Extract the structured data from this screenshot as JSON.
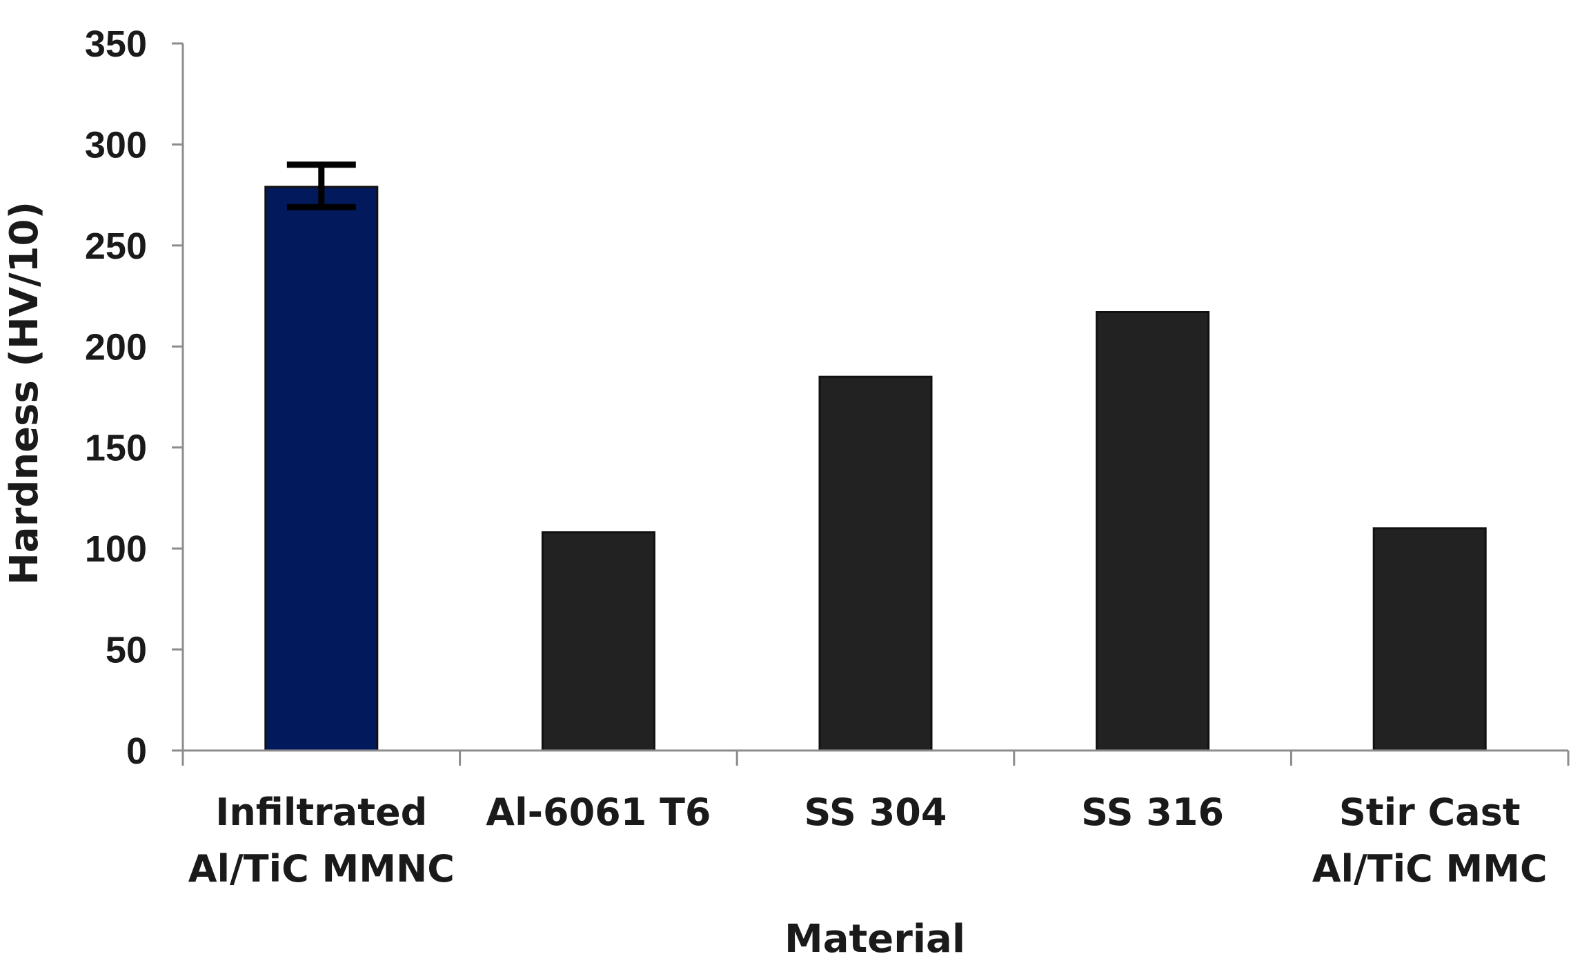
{
  "chart_data": {
    "type": "bar",
    "categories": [
      [
        "Infiltrated",
        "Al/TiC MMNC"
      ],
      [
        "Al-6061 T6"
      ],
      [
        "SS 304"
      ],
      [
        "SS 316"
      ],
      [
        "Stir Cast",
        "Al/TiC MMC"
      ]
    ],
    "values": [
      279,
      108,
      185,
      217,
      110
    ],
    "error_bars": [
      {
        "index": 0,
        "low": 269,
        "high": 290
      }
    ],
    "bar_colors": [
      "#021a5c",
      "#222222",
      "#222222",
      "#222222",
      "#222222"
    ],
    "title": "",
    "xlabel": "Material",
    "ylabel": "Hardness (HV/10)",
    "ylim": [
      0,
      350
    ],
    "yticks": [
      0,
      50,
      100,
      150,
      200,
      250,
      300,
      350
    ],
    "grid": false,
    "legend": "none"
  }
}
